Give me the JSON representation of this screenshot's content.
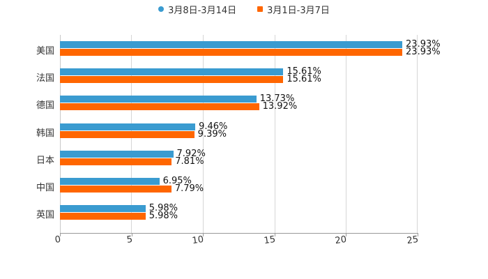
{
  "chart_data": {
    "type": "bar",
    "orientation": "horizontal",
    "title": "",
    "xlabel": "",
    "ylabel": "",
    "xlim": [
      0,
      25
    ],
    "x_ticks": [
      "0",
      "5",
      "10",
      "15",
      "20",
      "25"
    ],
    "grid": true,
    "legend_position": "top",
    "categories": [
      "美国",
      "法国",
      "德国",
      "韩国",
      "日本",
      "中国",
      "英国"
    ],
    "series": [
      {
        "name": "3月8日-3月14日",
        "color": "#3a9bd0",
        "marker": "circle",
        "values": [
          23.93,
          15.61,
          13.73,
          9.46,
          7.92,
          6.95,
          5.98
        ],
        "labels": [
          "23.93%",
          "15.61%",
          "13.73%",
          "9.46%",
          "7.92%",
          "6.95%",
          "5.98%"
        ]
      },
      {
        "name": "3月1日-3月7日",
        "color": "#ff6600",
        "marker": "square",
        "values": [
          23.93,
          15.61,
          13.92,
          9.39,
          7.81,
          7.79,
          5.98
        ],
        "labels": [
          "23.93%",
          "15.61%",
          "13.92%",
          "9.39%",
          "7.81%",
          "7.79%",
          "5.98%"
        ]
      }
    ]
  }
}
